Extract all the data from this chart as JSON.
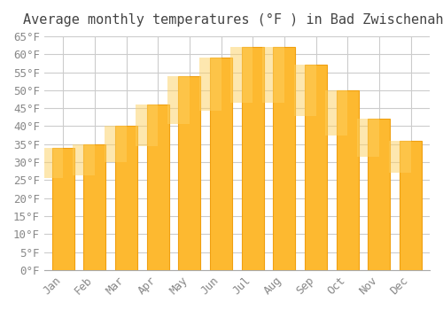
{
  "title": "Average monthly temperatures (°F ) in Bad Zwischenahn",
  "months": [
    "Jan",
    "Feb",
    "Mar",
    "Apr",
    "May",
    "Jun",
    "Jul",
    "Aug",
    "Sep",
    "Oct",
    "Nov",
    "Dec"
  ],
  "values": [
    34,
    35,
    40,
    46,
    54,
    59,
    62,
    62,
    57,
    50,
    42,
    36
  ],
  "bar_color": "#FDB930",
  "bar_edge_color": "#F0A010",
  "ylim": [
    0,
    65
  ],
  "yticks": [
    0,
    5,
    10,
    15,
    20,
    25,
    30,
    35,
    40,
    45,
    50,
    55,
    60,
    65
  ],
  "ylabel_suffix": "°F",
  "background_color": "#ffffff",
  "grid_color": "#cccccc",
  "title_fontsize": 11,
  "tick_fontsize": 9,
  "font_family": "monospace"
}
